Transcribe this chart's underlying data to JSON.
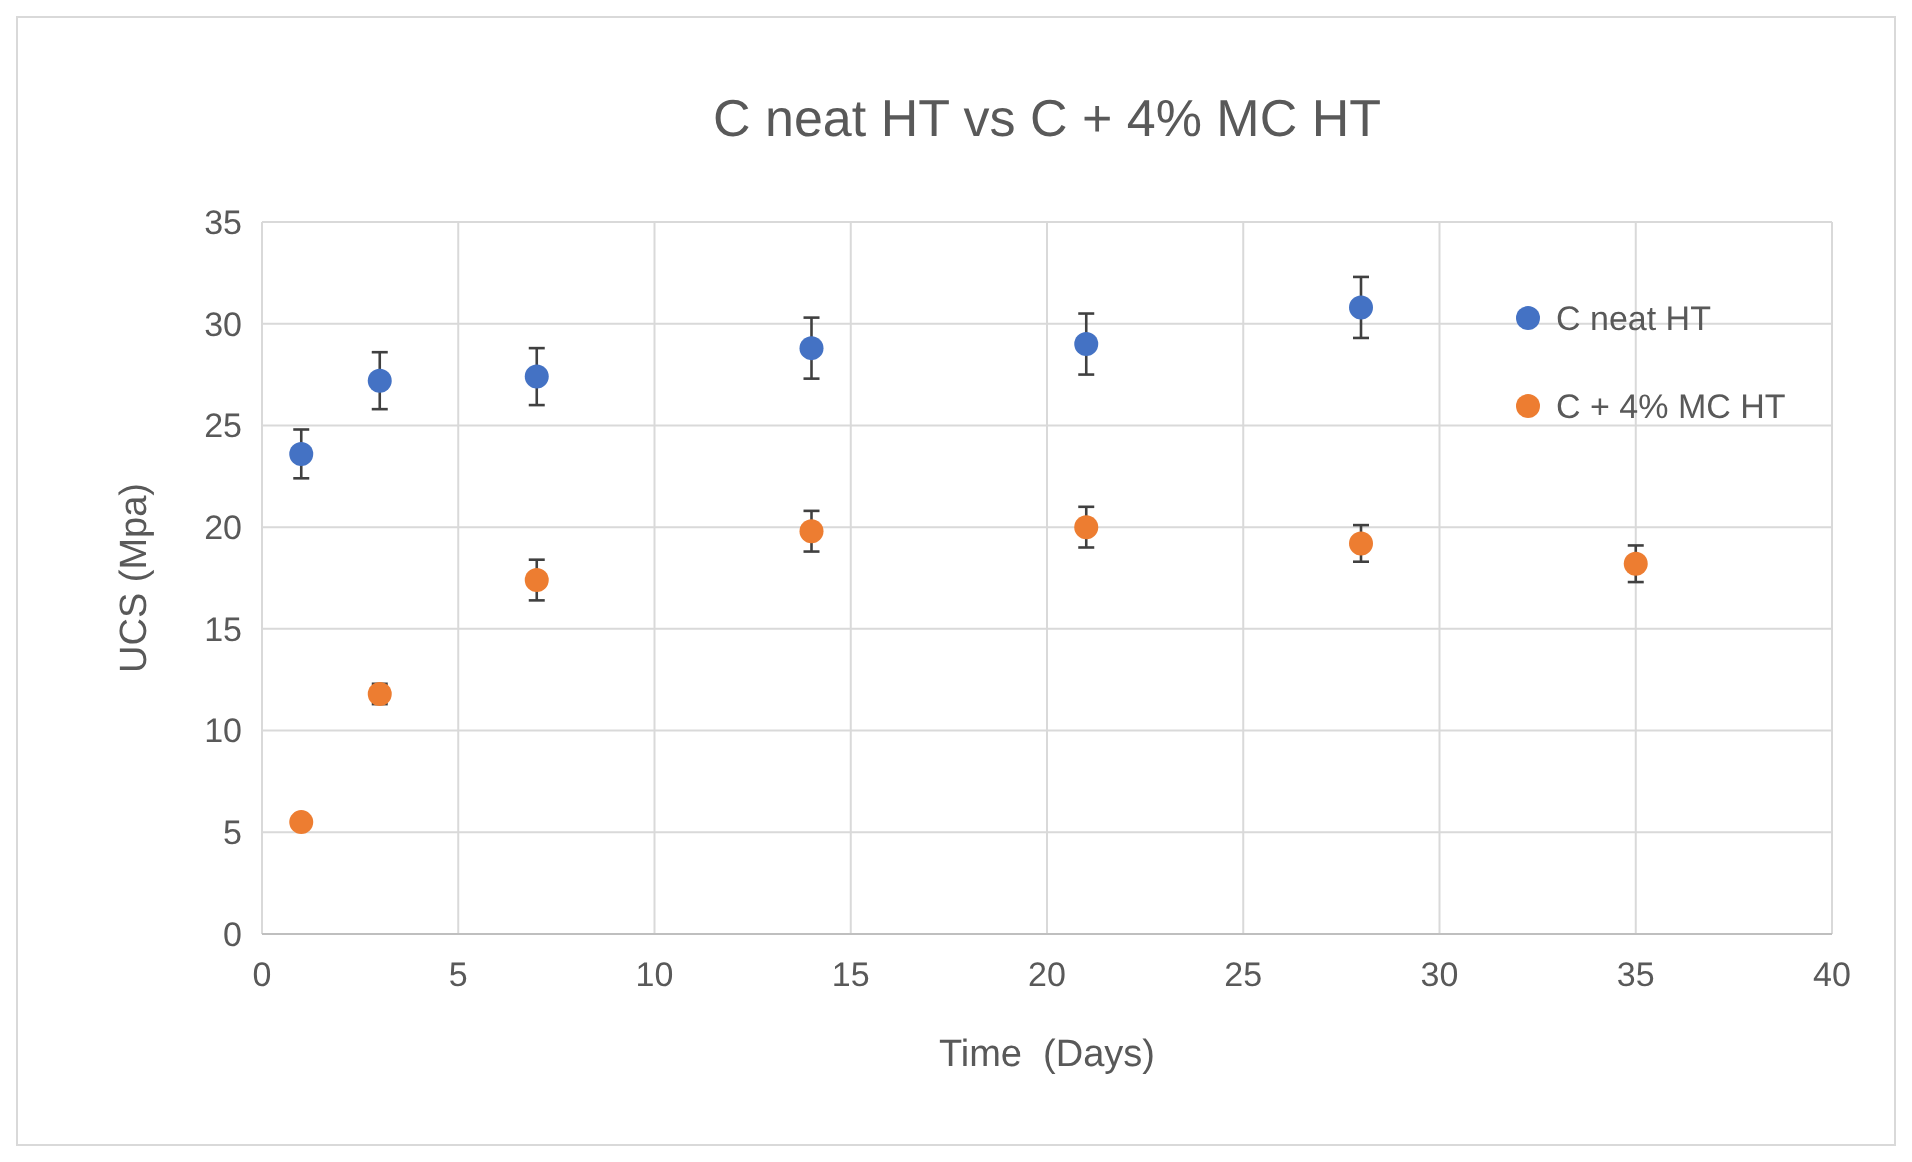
{
  "chart_data": {
    "type": "scatter",
    "title": "C neat HT vs C + 4% MC HT",
    "xlabel": "Time  (Days)",
    "ylabel": "UCS (Mpa)",
    "xlim": [
      0,
      40
    ],
    "xticks": [
      0,
      5,
      10,
      15,
      20,
      25,
      30,
      35,
      40
    ],
    "ylim": [
      0,
      35
    ],
    "yticks": [
      0,
      5,
      10,
      15,
      20,
      25,
      30,
      35
    ],
    "grid": true,
    "legend": "top right",
    "marker": "circle",
    "series": [
      {
        "name": "C neat HT",
        "color": "#4472c4",
        "x": [
          1,
          3,
          7,
          14,
          21,
          28
        ],
        "values": [
          23.6,
          27.2,
          27.4,
          28.8,
          29.0,
          30.8
        ],
        "errors": [
          1.2,
          1.4,
          1.4,
          1.5,
          1.5,
          1.5
        ]
      },
      {
        "name": "C + 4% MC HT",
        "color": "#ed7d31",
        "x": [
          1,
          3,
          7,
          14,
          21,
          28,
          35
        ],
        "values": [
          5.5,
          11.8,
          17.4,
          19.8,
          20.0,
          19.2,
          18.2
        ],
        "errors": [
          null,
          0.5,
          1.0,
          1.0,
          1.0,
          0.9,
          0.9
        ]
      }
    ]
  }
}
